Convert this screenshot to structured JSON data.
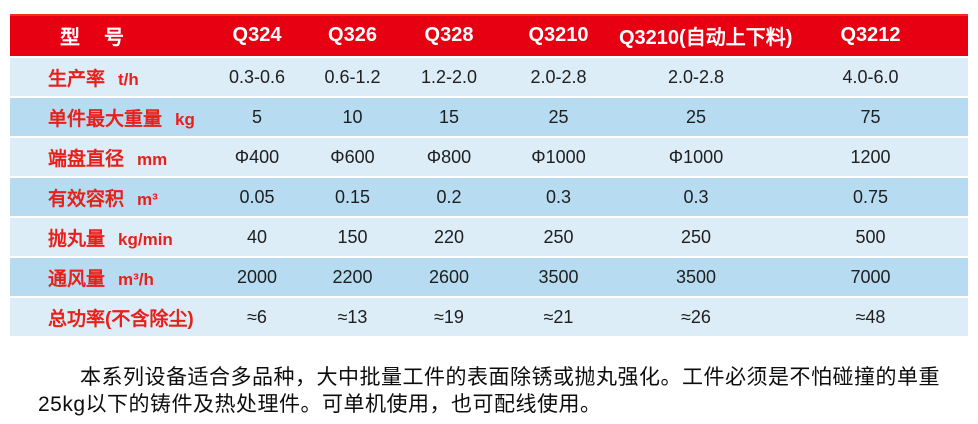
{
  "colors": {
    "header_red": "#e60012",
    "label_red": "#e8201a",
    "row_light_blue": "#dcedf8",
    "row_dark_blue": "#b7dcf1",
    "value_text": "#202020",
    "header_text": "#ffffff"
  },
  "table": {
    "header": {
      "label": "型　号",
      "models": [
        "Q324",
        "Q326",
        "Q328",
        "Q3210",
        "Q3210(自动上下料)",
        "Q3212"
      ]
    },
    "rows": [
      {
        "label": "生产率",
        "unit": "t/h",
        "values": [
          "0.3-0.6",
          "0.6-1.2",
          "1.2-2.0",
          "2.0-2.8",
          "2.0-2.8",
          "4.0-6.0"
        ]
      },
      {
        "label": "单件最大重量",
        "unit": "kg",
        "values": [
          "5",
          "10",
          "15",
          "25",
          "25",
          "75"
        ]
      },
      {
        "label": "端盘直径",
        "unit": "mm",
        "values": [
          "Φ400",
          "Φ600",
          "Φ800",
          "Φ1000",
          "Φ1000",
          "1200"
        ]
      },
      {
        "label": "有效容积",
        "unit": "m³",
        "values": [
          "0.05",
          "0.15",
          "0.2",
          "0.3",
          "0.3",
          "0.75"
        ]
      },
      {
        "label": "抛丸量",
        "unit": "kg/min",
        "values": [
          "40",
          "150",
          "220",
          "250",
          "250",
          "500"
        ]
      },
      {
        "label": "通风量",
        "unit": "m³/h",
        "values": [
          "2000",
          "2200",
          "2600",
          "3500",
          "3500",
          "7000"
        ]
      },
      {
        "label": "总功率(不含除尘)",
        "unit": "",
        "values": [
          "≈6",
          "≈13",
          "≈19",
          "≈21",
          "≈26",
          "≈48"
        ]
      }
    ]
  },
  "notes": {
    "lines": [
      "本系列设备适合多品种，大中批量工件的表面除锈或抛丸强化。工件必须是不怕碰撞的单重",
      "25kg以下的铸件及热处理件。可单机使用，也可配线使用。"
    ]
  }
}
